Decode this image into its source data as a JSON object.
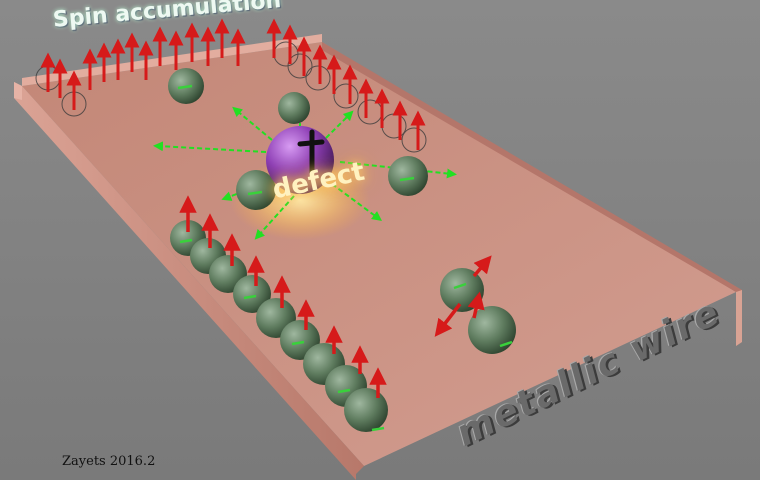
{
  "labels": {
    "title": "Spin accumulation",
    "defect": "defect",
    "wire": "metallic wire",
    "credit": "Zayets 2016.2"
  },
  "colors": {
    "background": "#7f7f7f",
    "wire_floor": "#c98f82",
    "wire_wall": "#d59a8c",
    "electron": "#5f7c5f",
    "electron_minus": "#39d13b",
    "spin_arrow": "#d61a1a",
    "defect_sphere": "#8e3fb5",
    "scatter_arrow": "#22e022",
    "defect_glow": "#ffd27a"
  },
  "icons": {
    "defect_charge": "plus-sign",
    "electron_charge": "minus-sign"
  }
}
